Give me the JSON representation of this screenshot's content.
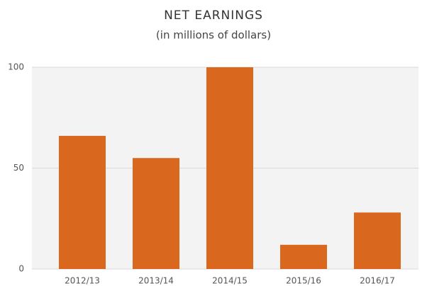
{
  "chart_data": {
    "type": "bar",
    "title": "NET EARNINGS",
    "subtitle": "(in millions of dollars)",
    "categories": [
      "2012/13",
      "2013/14",
      "2014/15",
      "2015/16",
      "2016/17"
    ],
    "values": [
      66,
      55,
      100,
      12,
      28
    ],
    "color": "#d9671e",
    "ylim": [
      0,
      100
    ],
    "yticks": [
      0,
      50,
      100
    ],
    "grid": true
  }
}
